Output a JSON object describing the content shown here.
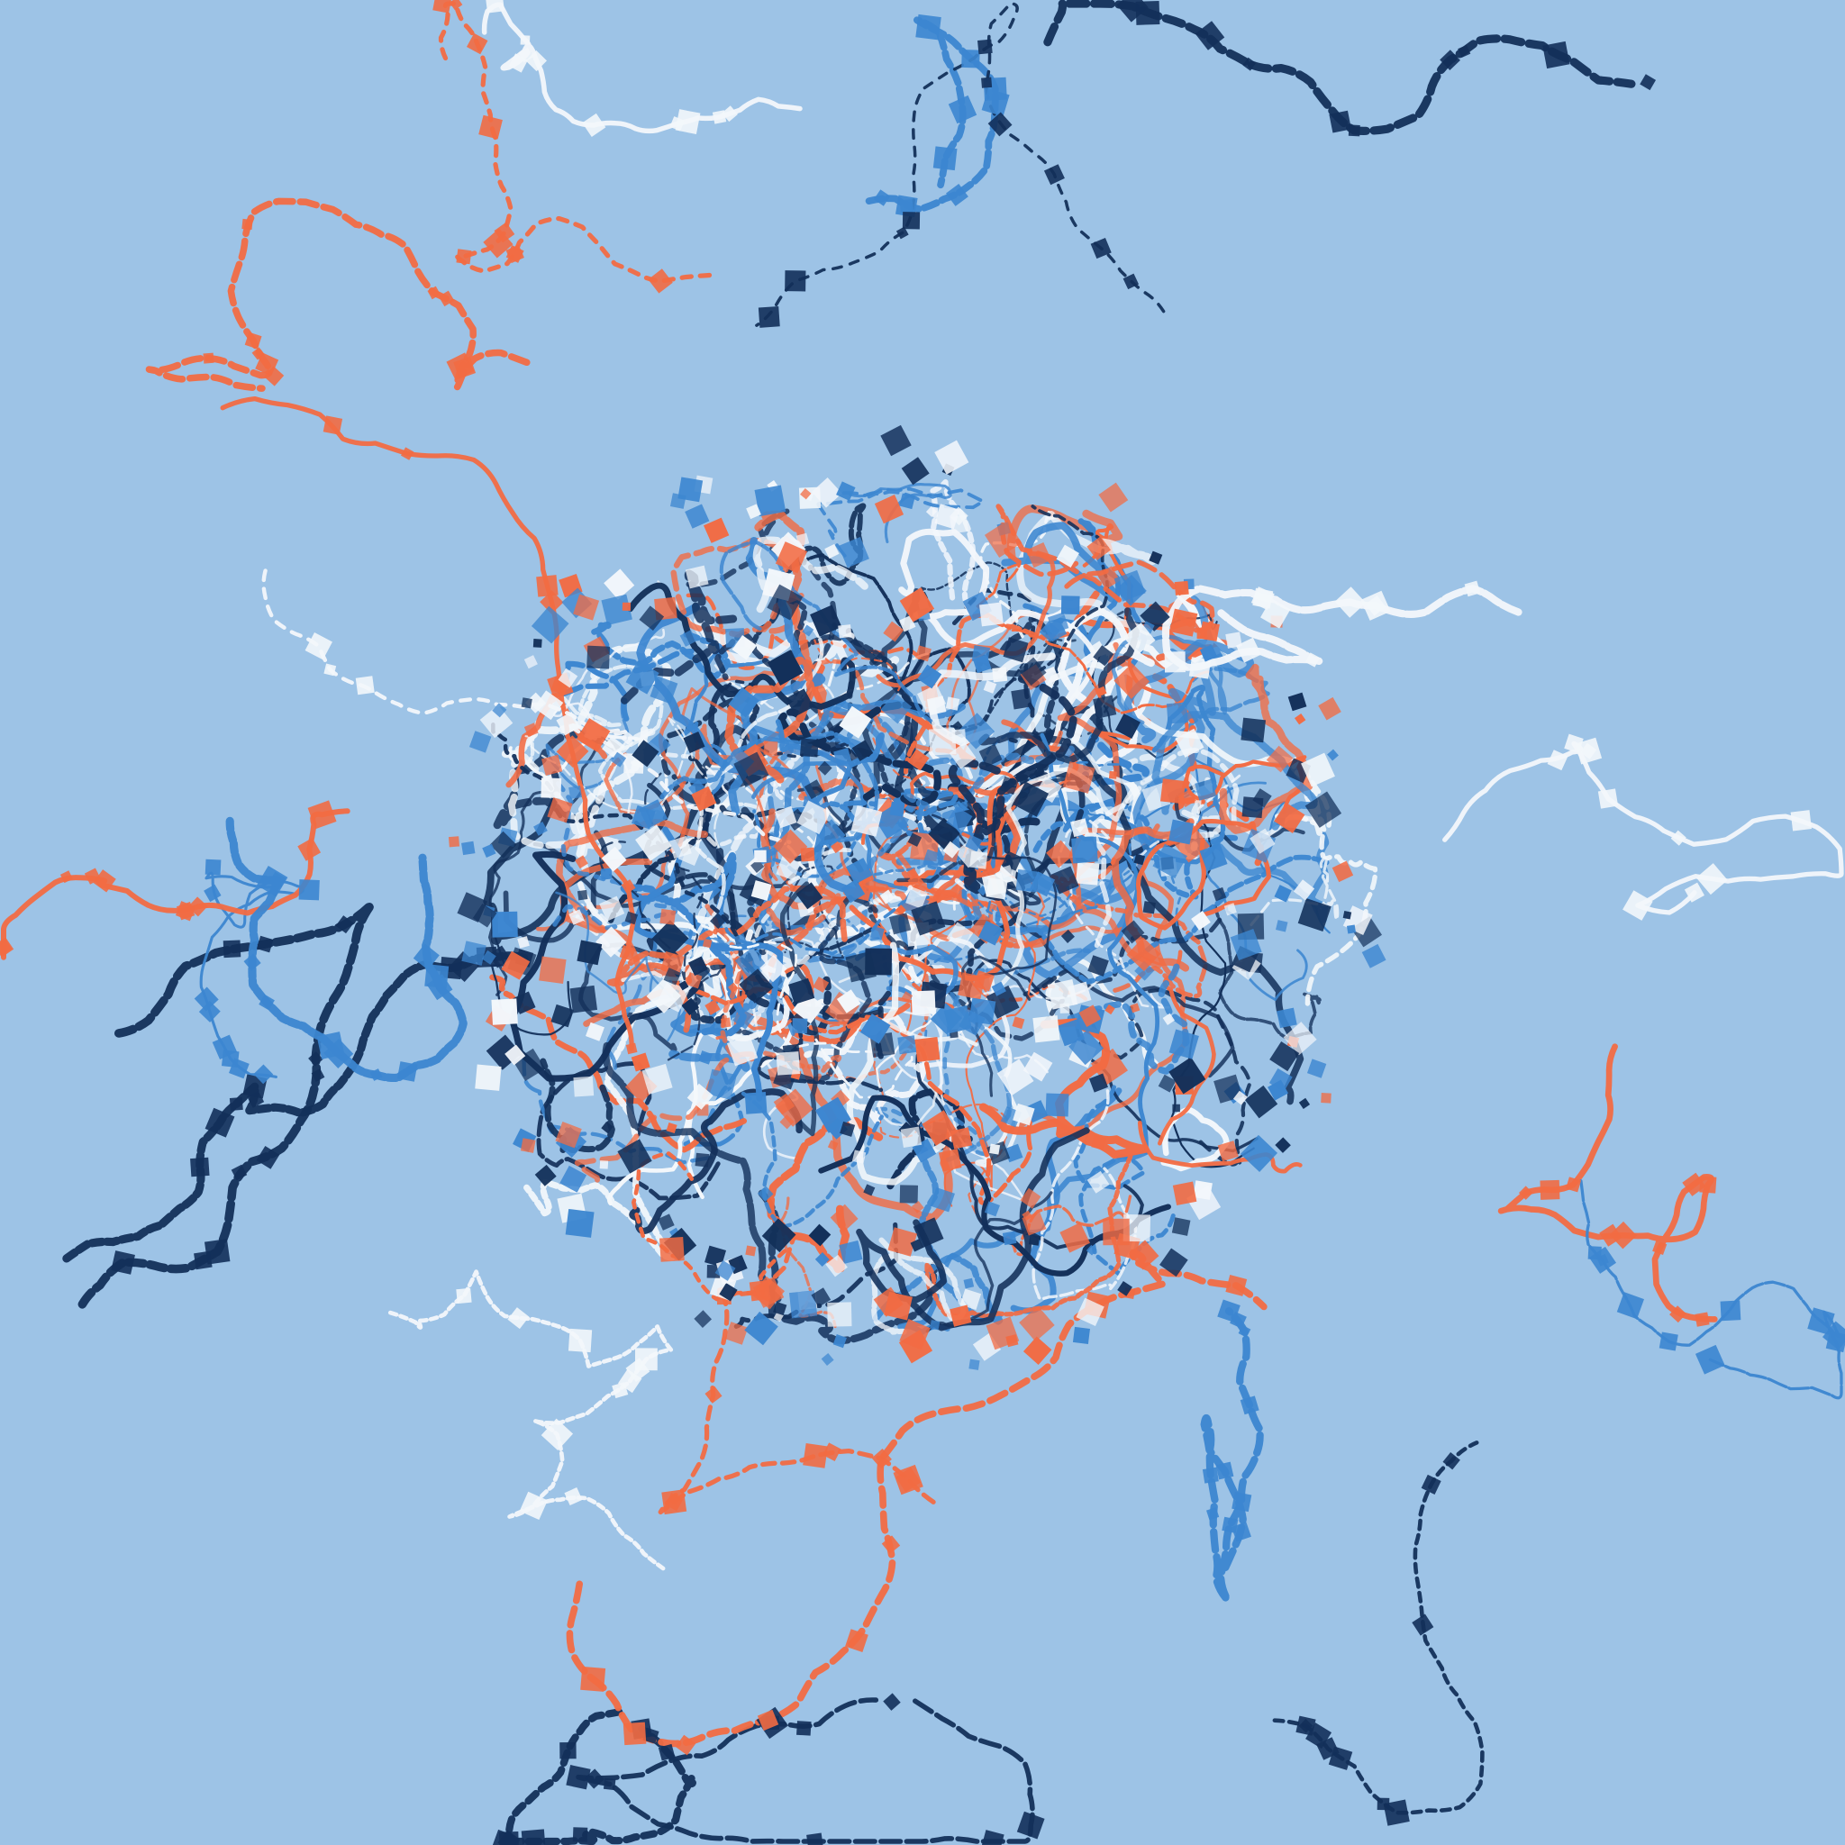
{
  "artwork": {
    "background_color": "#9dc3e6",
    "palette": {
      "navy": "#13305a",
      "blue": "#3c86d0",
      "orange": "#f26b43",
      "white": "#f3f7fb"
    },
    "style": "tangled ribbon scribbles with small square flecks, dense central cluster with loose strands radiating outward"
  }
}
